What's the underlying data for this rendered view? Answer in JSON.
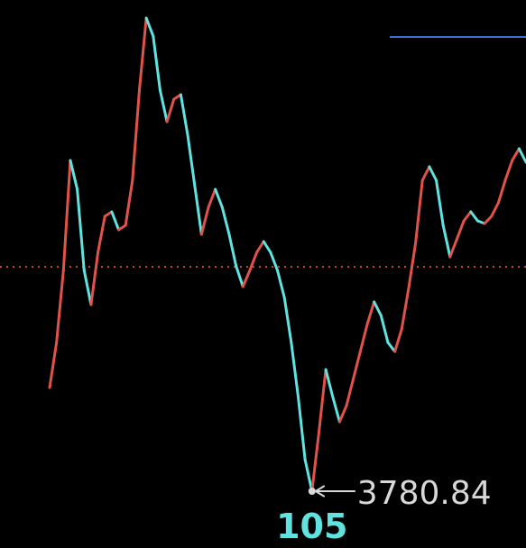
{
  "chart_data": {
    "type": "line",
    "values": [
      3803.84,
      3813.84,
      3829.84,
      3854.24,
      3847.84,
      3829.84,
      3822.24,
      3833.84,
      3841.84,
      3842.84,
      3838.84,
      3839.84,
      3849.84,
      3869.84,
      3885.84,
      3881.84,
      3869.84,
      3862.84,
      3867.84,
      3868.84,
      3859.84,
      3848.84,
      3837.84,
      3843.84,
      3847.84,
      3843.84,
      3837.84,
      3830.84,
      3826.24,
      3829.84,
      3833.84,
      3836.24,
      3833.84,
      3829.84,
      3823.84,
      3813.84,
      3801.84,
      3787.84,
      3780.84,
      3793.84,
      3807.84,
      3801.84,
      3796.24,
      3799.84,
      3805.84,
      3811.84,
      3817.84,
      3822.84,
      3819.84,
      3813.84,
      3811.84,
      3816.84,
      3825.84,
      3835.84,
      3849.84,
      3852.84,
      3849.84,
      3839.84,
      3832.84,
      3836.84,
      3840.84,
      3842.84,
      3840.84,
      3840.24,
      3841.84,
      3844.84,
      3849.84,
      3854.24,
      3856.84,
      3853.84
    ],
    "up_color": "#e0524a",
    "down_color": "#5fe3e0",
    "ylim": [
      3768.24,
      3889.84
    ],
    "reference": 3830.64,
    "reference_color": "#c8402e",
    "low_label": "3780.84",
    "cursor_label": "105"
  }
}
